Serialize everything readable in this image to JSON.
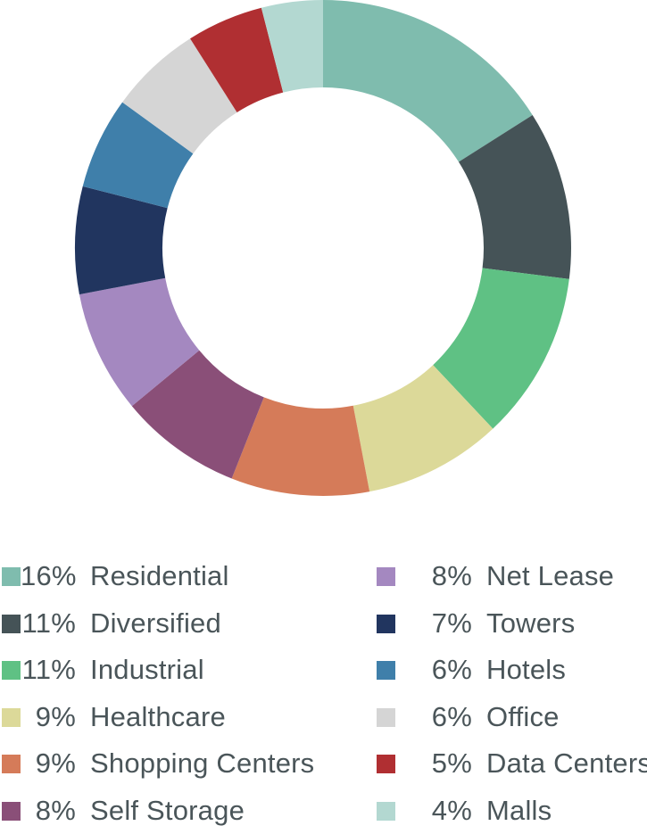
{
  "chart_data": {
    "type": "donut",
    "title": "",
    "slices": [
      {
        "label": "Residential",
        "value": 16,
        "pct_label": "16%",
        "color": "#7fbcae"
      },
      {
        "label": "Diversified",
        "value": 11,
        "pct_label": "11%",
        "color": "#455357"
      },
      {
        "label": "Industrial",
        "value": 11,
        "pct_label": "11%",
        "color": "#5fc184"
      },
      {
        "label": "Healthcare",
        "value": 9,
        "pct_label": "9%",
        "color": "#dcd999"
      },
      {
        "label": "Shopping Centers",
        "value": 9,
        "pct_label": "9%",
        "color": "#d57b59"
      },
      {
        "label": "Self Storage",
        "value": 8,
        "pct_label": "8%",
        "color": "#8a4f78"
      },
      {
        "label": "Net Lease",
        "value": 8,
        "pct_label": "8%",
        "color": "#a488c0"
      },
      {
        "label": "Towers",
        "value": 7,
        "pct_label": "7%",
        "color": "#21355f"
      },
      {
        "label": "Hotels",
        "value": 6,
        "pct_label": "6%",
        "color": "#3f7faa"
      },
      {
        "label": "Office",
        "value": 6,
        "pct_label": "6%",
        "color": "#d5d5d5"
      },
      {
        "label": "Data Centers",
        "value": 5,
        "pct_label": "5%",
        "color": "#b02f32"
      },
      {
        "label": "Malls",
        "value": 4,
        "pct_label": "4%",
        "color": "#b3d8d1"
      }
    ],
    "legend": {
      "placement": "bottom",
      "columns": 2
    }
  }
}
